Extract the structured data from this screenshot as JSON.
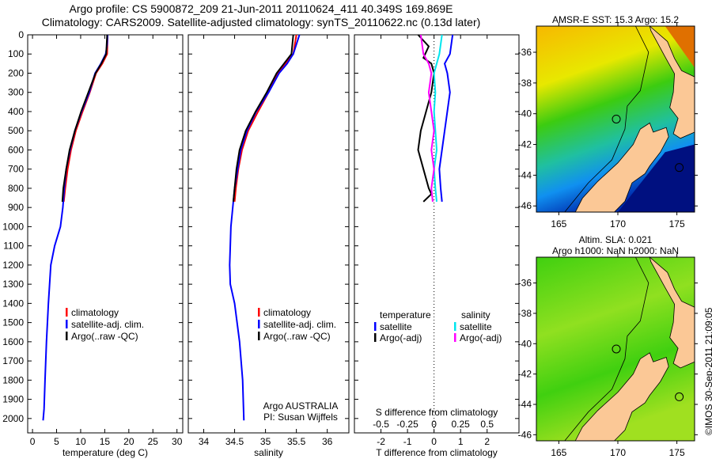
{
  "header": {
    "line1": "Argo profile: CS 5900872_209 21-Jun-2011 20110624_411 40.349S 169.869E",
    "line2": "Climatology: CARS2009. Satellite-adjusted climatology: synTS_20110622.nc (0.13d later)"
  },
  "credit": "©IMOS 30-Sep-2011 21:09:05",
  "colors": {
    "climatology": "#ff0000",
    "satellite": "#0000ff",
    "argo": "#000000",
    "sal_satellite": "#00e5ee",
    "sal_argo": "#ff00ff"
  },
  "chart_data": [
    {
      "type": "line",
      "name": "temperature-profile",
      "xlabel": "temperature (deg C)",
      "ylabel": "",
      "xlim": [
        -1,
        31.2
      ],
      "ylim": [
        0,
        2075
      ],
      "xticks": [
        0,
        5,
        10,
        15,
        20,
        25,
        30
      ],
      "yticks": [
        0,
        100,
        200,
        300,
        400,
        500,
        600,
        700,
        800,
        900,
        1000,
        1100,
        1200,
        1300,
        1400,
        1500,
        1600,
        1700,
        1800,
        1900,
        2000
      ],
      "legend": [
        "climatology",
        "satellite-adj. clim.",
        "Argo(..raw -QC)"
      ],
      "series": [
        {
          "name": "climatology",
          "color": "#ff0000",
          "x": [
            15.6,
            15.5,
            14.5,
            13.2,
            11.9,
            10.4,
            9.0,
            8.0,
            7.3,
            6.8,
            6.5
          ],
          "y": [
            0,
            100,
            150,
            200,
            300,
            400,
            500,
            600,
            700,
            800,
            870
          ]
        },
        {
          "name": "satellite-adj. clim.",
          "color": "#0000ff",
          "x": [
            15.6,
            15.5,
            15.2,
            14.2,
            13.0,
            11.8,
            10.2,
            8.8,
            7.8,
            7.0,
            6.6,
            6.3,
            5.8,
            4.6,
            3.8,
            3.3,
            2.9,
            2.6,
            2.4,
            2.2
          ],
          "y": [
            0,
            50,
            100,
            150,
            200,
            300,
            400,
            500,
            600,
            700,
            800,
            900,
            1000,
            1100,
            1200,
            1400,
            1600,
            1800,
            1950,
            2010
          ]
        },
        {
          "name": "Argo(..raw -QC)",
          "color": "#000000",
          "x": [
            15.5,
            15.3,
            14.3,
            13.1,
            11.6,
            10.1,
            8.8,
            7.7,
            7.0,
            6.4,
            6.2
          ],
          "y": [
            0,
            100,
            150,
            200,
            300,
            400,
            500,
            600,
            700,
            800,
            870
          ]
        }
      ]
    },
    {
      "type": "line",
      "name": "salinity-profile",
      "xlabel": "salinity",
      "ylabel": "",
      "xlim": [
        33.75,
        36.35
      ],
      "ylim": [
        0,
        2075
      ],
      "xticks": [
        34,
        34.5,
        35,
        35.5,
        36
      ],
      "yticks": [],
      "legend": [
        "climatology",
        "satellite-adj. clim.",
        "Argo(..raw -QC)"
      ],
      "annotation": [
        "Argo AUSTRALIA",
        "PI: Susan Wijffels"
      ],
      "series": [
        {
          "name": "climatology",
          "color": "#ff0000",
          "x": [
            35.5,
            35.45,
            35.32,
            35.2,
            35.05,
            34.88,
            34.72,
            34.62,
            34.56,
            34.52,
            34.5
          ],
          "y": [
            0,
            100,
            150,
            200,
            300,
            400,
            500,
            600,
            700,
            800,
            870
          ]
        },
        {
          "name": "satellite-adj. clim.",
          "color": "#0000ff",
          "x": [
            35.55,
            35.45,
            35.35,
            35.22,
            35.05,
            34.85,
            34.7,
            34.6,
            34.55,
            34.5,
            34.47,
            34.44,
            34.42,
            34.43,
            34.5,
            34.58,
            34.63,
            34.65
          ],
          "y": [
            0,
            100,
            150,
            200,
            300,
            400,
            500,
            600,
            700,
            800,
            900,
            1000,
            1200,
            1300,
            1400,
            1600,
            1800,
            2010
          ]
        },
        {
          "name": "Argo(..raw -QC)",
          "color": "#000000",
          "x": [
            35.45,
            35.42,
            35.3,
            35.18,
            35.02,
            34.84,
            34.68,
            34.58,
            34.53,
            34.5,
            34.48
          ],
          "y": [
            0,
            100,
            150,
            200,
            300,
            400,
            500,
            600,
            700,
            800,
            870
          ]
        }
      ]
    },
    {
      "type": "line",
      "name": "difference-profile",
      "xlabel": "T difference from climatology",
      "top_label": "S difference from climatology",
      "xlim": [
        -3,
        3.2
      ],
      "ylim": [
        0,
        2075
      ],
      "xticks": [
        -2,
        -1,
        0,
        1,
        2
      ],
      "sticks": [
        "-0.5",
        "-0.25",
        "0",
        "0.25",
        "0.5"
      ],
      "yticks": [],
      "legend_titles": [
        "temperature",
        "salinity"
      ],
      "legend": [
        "satellite",
        "Argo(-adj)",
        "satellite",
        "Argo(-adj)"
      ],
      "series": [
        {
          "name": "T satellite",
          "color": "#0000ff",
          "x": [
            0.7,
            0.6,
            0.4,
            0.5,
            0.6,
            0.5,
            0.4,
            0.3,
            0.2,
            0.25,
            0.3
          ],
          "y": [
            0,
            100,
            150,
            200,
            300,
            400,
            500,
            600,
            700,
            800,
            870
          ]
        },
        {
          "name": "T Argo(-adj)",
          "color": "#000000",
          "x": [
            -0.6,
            -0.2,
            -0.4,
            -0.1,
            0.0,
            -0.1,
            -0.3,
            -0.5,
            -0.6,
            -0.4,
            -0.2,
            -0.1,
            -0.4
          ],
          "y": [
            0,
            60,
            120,
            150,
            200,
            300,
            400,
            500,
            600,
            700,
            800,
            830,
            870
          ]
        },
        {
          "name": "S satellite",
          "color": "#00e5ee",
          "x": [
            0.3,
            0.2,
            0.1,
            0.0,
            0.05,
            0.0,
            0.05,
            0.1,
            0.0,
            0.05,
            0.1
          ],
          "y": [
            0,
            100,
            150,
            200,
            300,
            400,
            500,
            600,
            700,
            800,
            870
          ]
        },
        {
          "name": "S Argo(-adj)",
          "color": "#ff00ff",
          "x": [
            -0.5,
            -0.4,
            -0.2,
            -0.1,
            -0.2,
            -0.1,
            0.0,
            -0.1,
            0.0,
            -0.1,
            -0.05
          ],
          "y": [
            0,
            100,
            150,
            200,
            300,
            400,
            500,
            600,
            700,
            800,
            870
          ]
        }
      ]
    }
  ],
  "maps": [
    {
      "title": "AMSR-E SST: 15.3 Argo: 15.2",
      "lonticks": [
        "165",
        "170",
        "175"
      ],
      "latticks": [
        "-36",
        "-38",
        "-40",
        "-42",
        "-44",
        "-46"
      ]
    },
    {
      "title1": "Altim. SLA: 0.021",
      "title2": "Argo h1000: NaN h2000: NaN",
      "lonticks": [
        "165",
        "170",
        "175"
      ],
      "latticks": [
        "-36",
        "-38",
        "-40",
        "-42",
        "-44",
        "-46"
      ]
    }
  ]
}
